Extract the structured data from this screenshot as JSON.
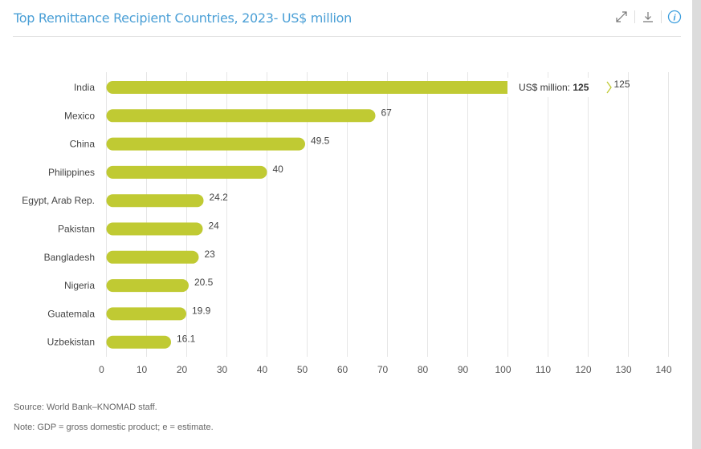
{
  "header": {
    "title": "Top Remittance Recipient Countries, 2023- US$ million",
    "icons": [
      "expand-icon",
      "download-icon",
      "info-icon"
    ]
  },
  "chart_data": {
    "type": "bar",
    "orientation": "horizontal",
    "categories": [
      "India",
      "Mexico",
      "China",
      "Philippines",
      "Egypt, Arab Rep.",
      "Pakistan",
      "Bangladesh",
      "Nigeria",
      "Guatemala",
      "Uzbekistan"
    ],
    "values": [
      125,
      67,
      49.5,
      40,
      24.2,
      24,
      23,
      20.5,
      19.9,
      16.1
    ],
    "data_labels": [
      "125",
      "67",
      "49.5",
      "40",
      "24.2",
      "24",
      "23",
      "20.5",
      "19.9",
      "16.1"
    ],
    "xlim": [
      0,
      140
    ],
    "xticks": [
      0,
      10,
      20,
      30,
      40,
      50,
      60,
      70,
      80,
      90,
      100,
      110,
      120,
      130,
      140
    ],
    "grid": true,
    "bar_color": "#c0ca33",
    "tooltip": {
      "label": "US$ million: ",
      "value": "125"
    }
  },
  "footer": {
    "source": "Source: World Bank–KNOMAD staff.",
    "note": "Note: GDP = gross domestic product; e = estimate."
  }
}
